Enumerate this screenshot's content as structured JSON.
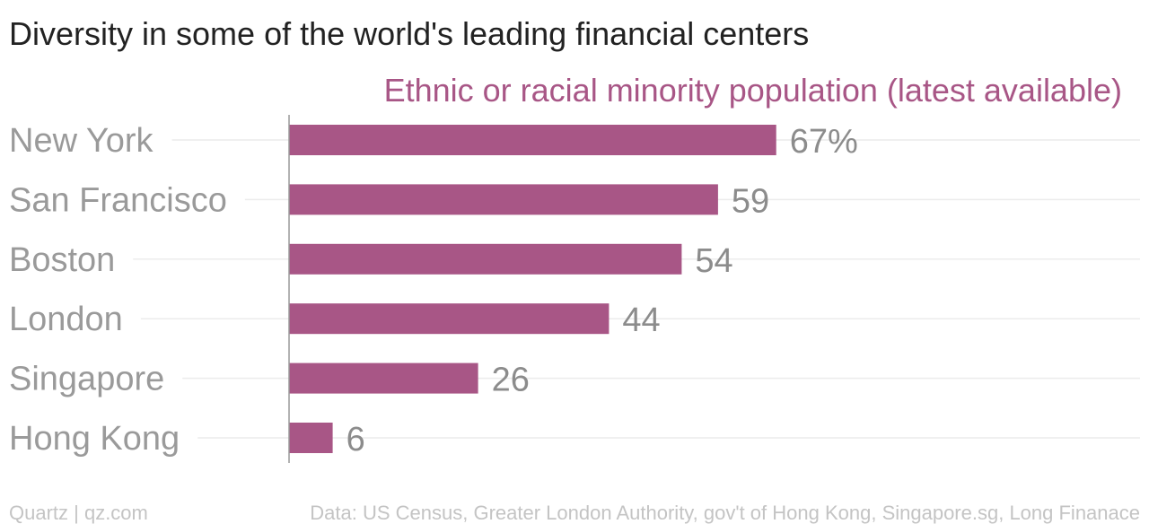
{
  "chart_data": {
    "type": "bar",
    "orientation": "horizontal",
    "title": "Diversity in some of the world's leading financial centers",
    "subtitle": "Ethnic or racial minority population (latest available)",
    "categories": [
      "New York",
      "San Francisco",
      "Boston",
      "London",
      "Singapore",
      "Hong Kong"
    ],
    "values": [
      67,
      59,
      54,
      44,
      26,
      6
    ],
    "value_labels": [
      "67%",
      "59",
      "54",
      "44",
      "26",
      "6"
    ],
    "xlim": [
      0,
      100
    ],
    "grid": true,
    "legend": "none"
  },
  "footer": {
    "left": "Quartz | qz.com",
    "right": "Data: US Census, Greater London Authority, gov't of Hong Kong, Singapore.sg, Long Finanace"
  },
  "colors": {
    "bar": "#a85686",
    "subtitle": "#a85686",
    "grid": "#ececec",
    "axis": "#9a9a9a"
  }
}
